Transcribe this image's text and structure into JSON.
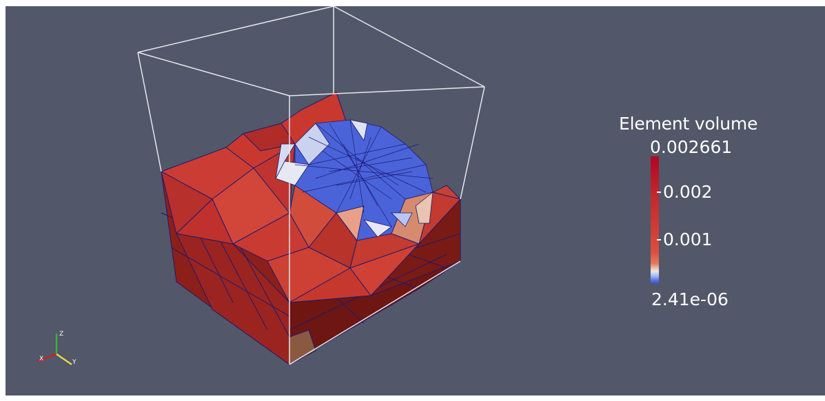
{
  "legend": {
    "title": "Element volume",
    "max_label": "0.002661",
    "mid_high_label": "0.002",
    "mid_low_label": "0.001",
    "min_label": "2.41e-06",
    "range": [
      2.41e-06,
      0.002661
    ],
    "colormap": [
      "#3b4cc0",
      "#dddddd",
      "#b40426"
    ]
  },
  "axes_triad": {
    "x_label": "X",
    "y_label": "Y",
    "z_label": "Z",
    "x_color": "#cc2222",
    "y_color": "#e8d84a",
    "z_color": "#3fae3f"
  },
  "colors": {
    "background": "#525769",
    "mesh_red": "#c93b33",
    "mesh_blue": "#4d63d9",
    "wireframe": "#ffffff",
    "edges": "#1e1a6e"
  }
}
